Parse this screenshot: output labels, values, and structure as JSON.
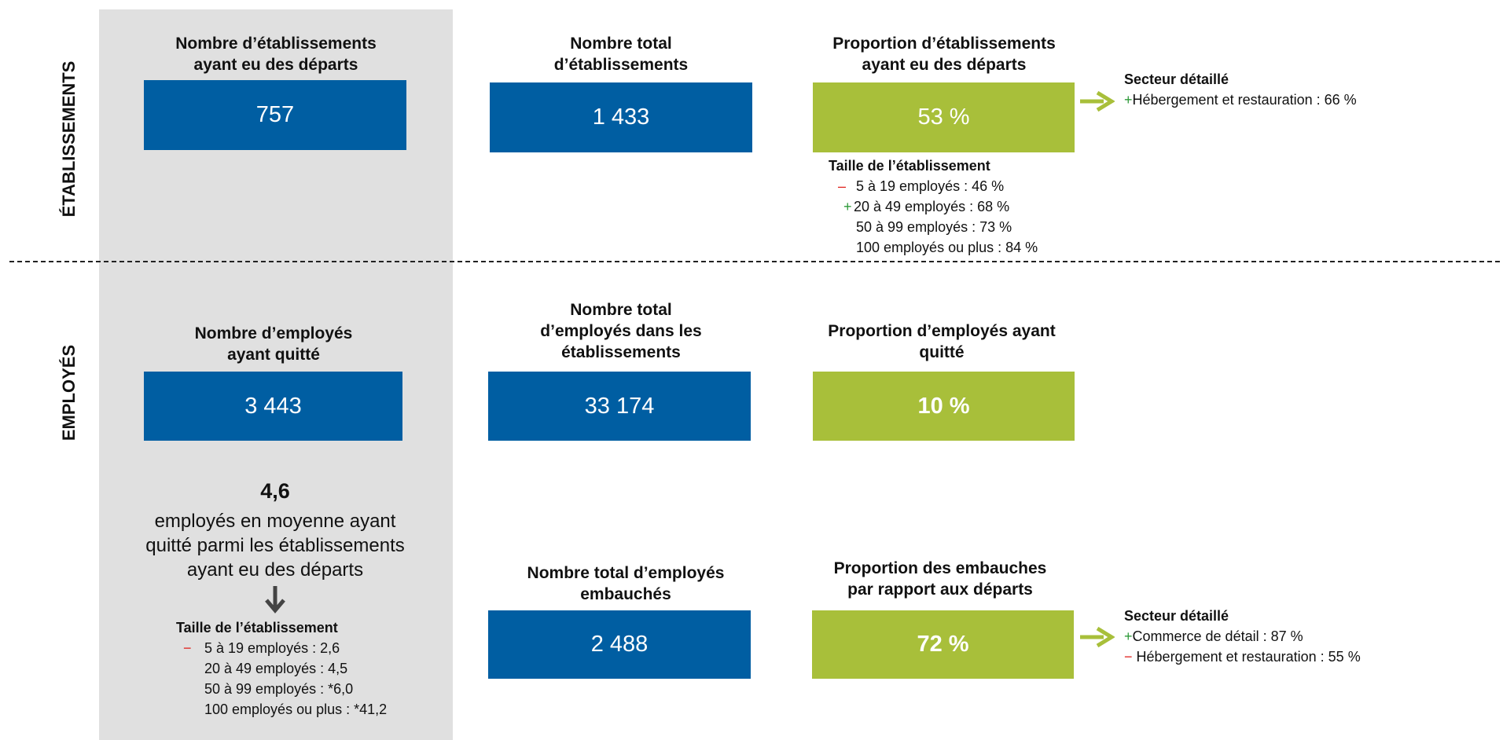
{
  "sections": {
    "establishments": {
      "label": "ÉTABLISSEMENTS",
      "cards": [
        {
          "title": [
            "Nombre d’établissements",
            "ayant eu des départs"
          ],
          "value": "757"
        },
        {
          "title": [
            "Nombre total",
            "d’établissements"
          ],
          "value": "1 433"
        },
        {
          "title": [
            "Proportion d’établissements",
            "ayant eu des départs"
          ],
          "value": "53 %"
        }
      ],
      "sector": {
        "heading": "Secteur détaillé",
        "items": [
          {
            "sign": "+",
            "text": "Hébergement et restauration : 66 %"
          }
        ]
      },
      "size": {
        "heading": "Taille de l’établissement",
        "items": [
          {
            "sign": "–",
            "text": "5 à 19 employés : 46 %"
          },
          {
            "sign": "+",
            "text": "20 à 49 employés : 68 %"
          },
          {
            "text": "50 à 99 employés : 73 %"
          },
          {
            "text": "100 employés ou plus : 84 %"
          }
        ]
      }
    },
    "employees": {
      "label": "EMPLOYÉS",
      "cards": [
        {
          "title": [
            "Nombre d’employés",
            "ayant quitté"
          ],
          "value": "3 443"
        },
        {
          "title": [
            "Nombre total",
            "d’employés dans les",
            "établissements"
          ],
          "value": "33 174"
        },
        {
          "title": [
            "Proportion d’employés ayant",
            "quitté"
          ],
          "value": "10 %"
        },
        {
          "title": [
            "Nombre total d’employés",
            "embauchés"
          ],
          "value": "2 488"
        },
        {
          "title": [
            "Proportion des embauches",
            "par rapport aux départs"
          ],
          "value": "72 %"
        }
      ],
      "average": {
        "value": "4,6",
        "text": [
          "employés en moyenne ayant",
          "quitté parmi les établissements",
          "ayant eu des départs"
        ]
      },
      "size": {
        "heading": "Taille de l’établissement",
        "items": [
          {
            "sign": "−",
            "text": "5 à 19 employés : 2,6"
          },
          {
            "text": "20 à 49 employés : 4,5"
          },
          {
            "text": "50 à 99 employés : *6,0"
          },
          {
            "text": "100 employés ou plus : *41,2"
          }
        ]
      },
      "sector": {
        "heading": "Secteur détaillé",
        "items": [
          {
            "sign": "+",
            "text": "Commerce de détail : 87 %"
          },
          {
            "sign": "−",
            "text": "Hébergement et restauration : 55 %"
          }
        ]
      }
    }
  }
}
